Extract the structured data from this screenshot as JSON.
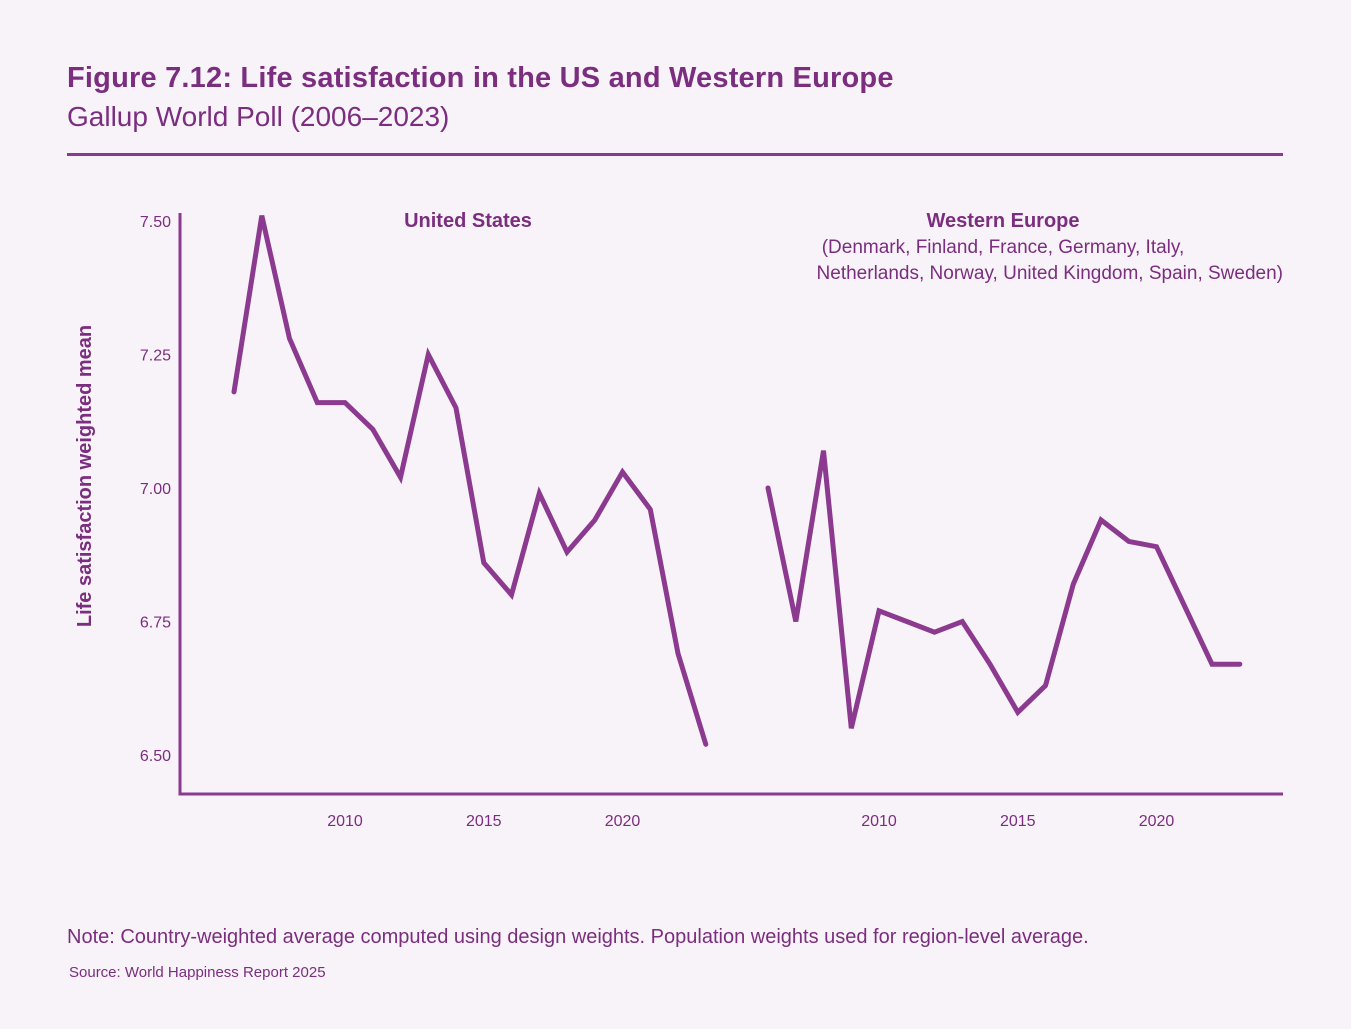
{
  "header": {
    "title": "Figure 7.12: Life satisfaction in the US and Western Europe",
    "subtitle": "Gallup World Poll (2006–2023)"
  },
  "footer": {
    "note": "Note: Country-weighted average computed using design weights. Population weights used for region-level average.",
    "source": "Source: World Happiness Report 2025"
  },
  "colors": {
    "accent": "#7b2d7f",
    "line": "#8b3a8f",
    "background": "#f8f3f8"
  },
  "chart_data": {
    "type": "line",
    "title": "Figure 7.12: Life satisfaction in the US and Western Europe",
    "subtitle": "Gallup World Poll (2006–2023)",
    "xlabel": "",
    "ylabel": "Life satisfaction weighted mean",
    "ylim": [
      6.5,
      7.5
    ],
    "yticks": [
      7.5,
      7.25,
      7.0,
      6.75,
      6.5
    ],
    "ytick_labels": [
      "7.50",
      "7.25",
      "7.00",
      "6.75",
      "6.50"
    ],
    "grid": false,
    "legend": "none (panel labels above each series)",
    "panels": [
      {
        "name": "United States",
        "label_lines": [
          "United States"
        ],
        "xticks": [
          2010,
          2015,
          2020
        ],
        "xtick_labels": [
          "2010",
          "2015",
          "2020"
        ],
        "x": [
          2006,
          2007,
          2008,
          2009,
          2010,
          2011,
          2012,
          2013,
          2014,
          2015,
          2016,
          2017,
          2018,
          2019,
          2020,
          2021,
          2022,
          2023
        ],
        "values": [
          7.18,
          7.51,
          7.28,
          7.16,
          7.16,
          7.11,
          7.02,
          7.25,
          7.15,
          6.86,
          6.8,
          6.99,
          6.88,
          6.94,
          7.03,
          6.96,
          6.69,
          6.52
        ]
      },
      {
        "name": "Western Europe",
        "label_lines": [
          "Western Europe",
          "(Denmark, Finland, France, Germany, Italy,",
          "Netherlands, Norway, United Kingdom, Spain, Sweden)"
        ],
        "xticks": [
          2010,
          2015,
          2020
        ],
        "xtick_labels": [
          "2010",
          "2015",
          "2020"
        ],
        "x": [
          2006,
          2007,
          2008,
          2009,
          2010,
          2011,
          2012,
          2013,
          2014,
          2015,
          2016,
          2017,
          2018,
          2019,
          2020,
          2021,
          2022,
          2023
        ],
        "values": [
          7.0,
          6.75,
          7.07,
          6.55,
          6.77,
          6.75,
          6.73,
          6.75,
          6.67,
          6.58,
          6.63,
          6.82,
          6.94,
          6.9,
          6.89,
          6.78,
          6.67,
          6.67
        ]
      }
    ]
  }
}
